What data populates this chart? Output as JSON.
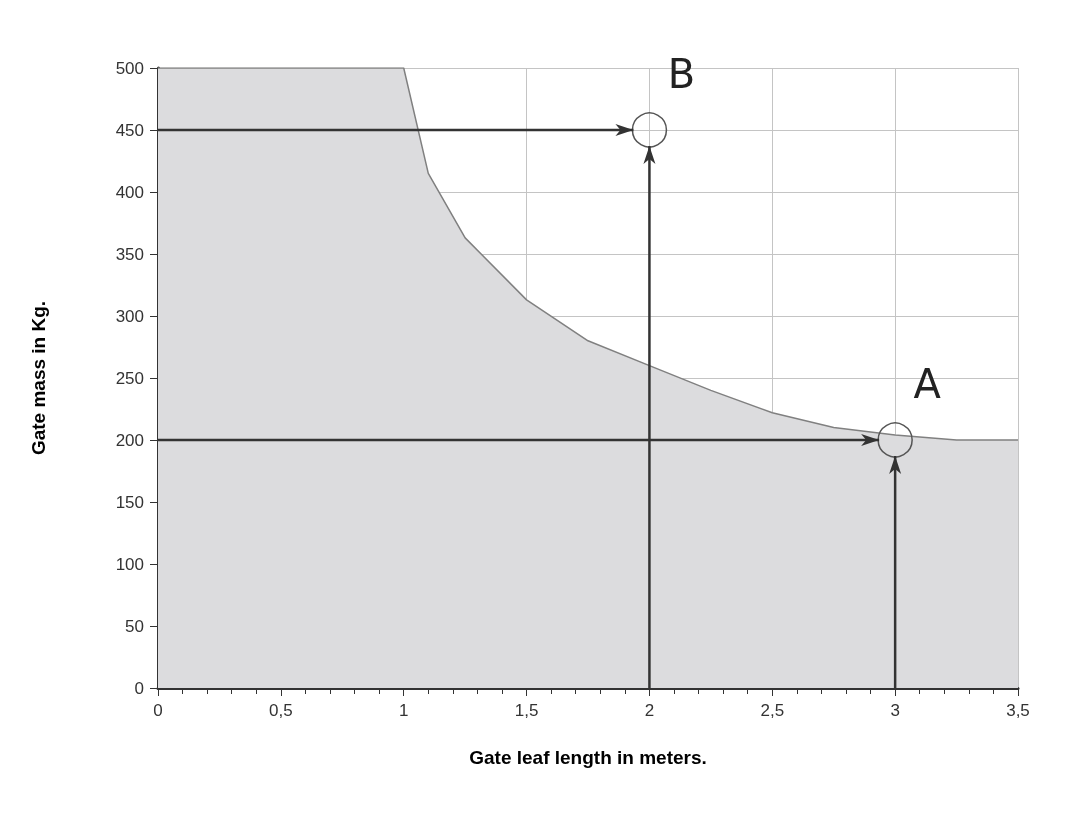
{
  "chart_data": {
    "type": "area",
    "xlabel": "Gate leaf length in meters.",
    "ylabel": "Gate mass in Kg.",
    "x": [
      0,
      1,
      1.1,
      1.25,
      1.5,
      1.75,
      2,
      2.25,
      2.5,
      2.75,
      3,
      3.25,
      3.5
    ],
    "series": [
      {
        "color": "#808080",
        "values": [
          500,
          500,
          415,
          363,
          313,
          280,
          260,
          240,
          222,
          210,
          204,
          200,
          200
        ]
      }
    ],
    "xlim": [
      0,
      3.5
    ],
    "xticks": [
      0,
      {
        "value": 0.5,
        "label": "0,5"
      },
      1,
      {
        "value": 1.5,
        "label": "1,5"
      },
      2,
      {
        "value": 2.5,
        "label": "2,5"
      },
      3,
      {
        "value": 3.5,
        "label": "3,5"
      }
    ],
    "ylim": [
      0,
      500
    ],
    "yticks": [
      0,
      50,
      100,
      150,
      200,
      250,
      300,
      350,
      400,
      450,
      500
    ],
    "grid": true,
    "annotations": [
      {
        "text": "A",
        "x": 3,
        "y": 200
      },
      {
        "text": "B",
        "x": 2,
        "y": 450
      }
    ]
  }
}
